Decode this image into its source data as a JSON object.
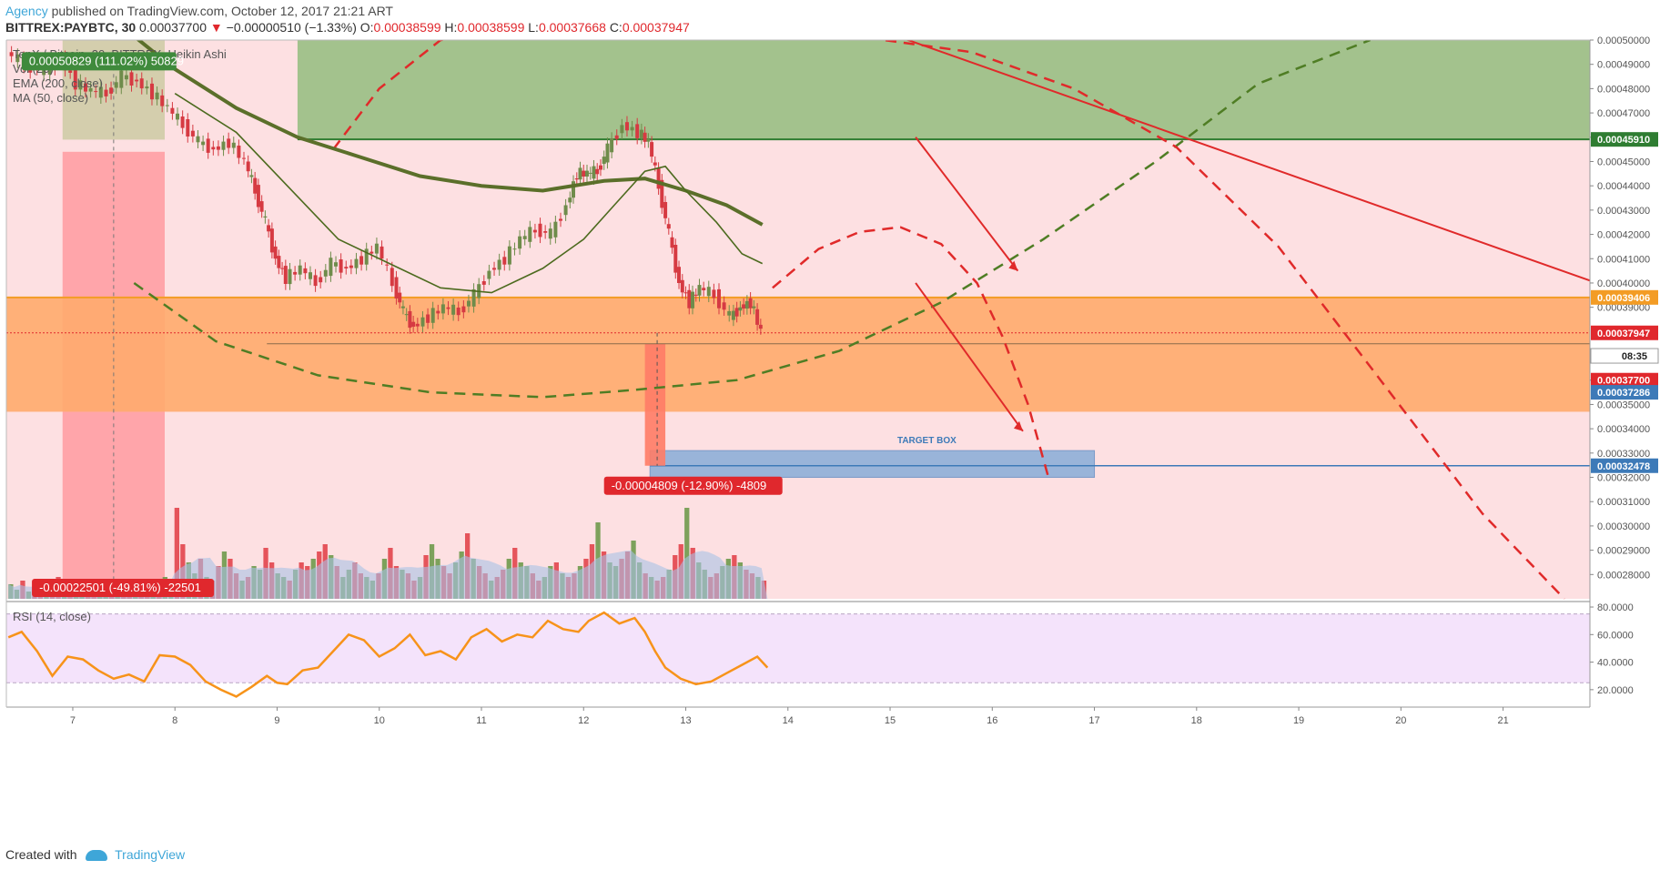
{
  "header": {
    "author": "Agency",
    "published": " published on TradingView.com, October 12, 2017 21:21 ART"
  },
  "symbol_bar": {
    "symbol": "BITTREX:PAYBTC, 30",
    "last": "0.00037700",
    "change": "−0.00000510 (−1.33%)",
    "o_label": "O:",
    "o": "0.00038599",
    "h_label": "H:",
    "h": "0.00038599",
    "l_label": "L:",
    "l": "0.00037668",
    "c_label": "C:",
    "c": "0.00037947"
  },
  "legend": {
    "title": "TenX / Bitcoin, 30, BITTREX, Heikin Ashi",
    "volume": "Vol (20)",
    "ema": "EMA (200, close)",
    "ma": "MA (50, close)"
  },
  "annotations": {
    "measure_top": "0.00050829 (111.02%) 50829",
    "measure_bottom": "-0.00022501 (-49.81%) -22501",
    "measure_mid": "-0.00004809 (-12.90%) -4809",
    "target_box": "TARGET BOX"
  },
  "rsi": {
    "label": "RSI (14, close)"
  },
  "footer": {
    "created_with": "Created with",
    "brand": "TradingView"
  },
  "colors": {
    "background_pink": "#fde0e2",
    "green_zone": "#a3c28d",
    "orange_zone": "#ffab6d",
    "target_blue": "#8fb0d9",
    "bull": "#6f8c4b",
    "bear": "#d63a42",
    "ema": "#5b6f2a",
    "rsi": "#f7931a"
  },
  "chart_data": {
    "type": "candlestick",
    "price_axis": {
      "min": 0.00027,
      "max": 0.0005,
      "ticks": [
        "0.00050000",
        "0.00049000",
        "0.00048000",
        "0.00047000",
        "0.00046000",
        "0.00045000",
        "0.00044000",
        "0.00043000",
        "0.00042000",
        "0.00041000",
        "0.00040000",
        "0.00039000",
        "0.00036000",
        "0.00035000",
        "0.00034000",
        "0.00033000",
        "0.00032000",
        "0.00031000",
        "0.00030000",
        "0.00029000",
        "0.00028000"
      ],
      "tick_values": [
        0.0005,
        0.00049,
        0.00048,
        0.00047,
        0.00046,
        0.00045,
        0.00044,
        0.00043,
        0.00042,
        0.00041,
        0.0004,
        0.00039,
        0.00036,
        0.00035,
        0.00034,
        0.00033,
        0.00032,
        0.00031,
        0.0003,
        0.00029,
        0.00028
      ],
      "badges": [
        {
          "label": "0.00045910",
          "value": 0.0004591,
          "color": "#2f7d32"
        },
        {
          "label": "0.00039406",
          "value": 0.00039406,
          "color": "#f39c25"
        },
        {
          "label": "0.00037947",
          "value": 0.00037947,
          "color": "#e0282d"
        },
        {
          "label": "08:35",
          "value": 0.00037,
          "color": "#ffffff"
        },
        {
          "label": "0.00037700",
          "value": 0.00036,
          "color": "#e0282d"
        },
        {
          "label": "0.00037286",
          "value": 0.000355,
          "color": "#3d7ab8"
        },
        {
          "label": "0.00032478",
          "value": 0.00032478,
          "color": "#3d7ab8"
        }
      ]
    },
    "time_axis": {
      "labels": [
        "7",
        "8",
        "9",
        "10",
        "11",
        "12",
        "13",
        "14",
        "15",
        "16",
        "17",
        "18",
        "19",
        "20",
        "21"
      ],
      "day_index": [
        1,
        2,
        3,
        4,
        5,
        6,
        7,
        8,
        9,
        10,
        11,
        12,
        13,
        14,
        15
      ],
      "day_min": 0.35,
      "day_max": 15.85
    },
    "zones": {
      "green": {
        "from": 0.0004591,
        "to": 0.0005,
        "day_start": 3.2,
        "day_end": 15.85
      },
      "green_left": {
        "from": 0.000459,
        "to": 0.0005,
        "day_start": 0.9,
        "day_end": 1.9
      },
      "orange": {
        "from": 0.000347,
        "to": 0.00039406
      },
      "target": {
        "from": 0.00032,
        "to": 0.000331,
        "day_start": 6.65,
        "day_end": 11.0
      }
    },
    "rsi_axis": {
      "ticks": [
        "80.0000",
        "60.0000",
        "40.0000",
        "20.0000"
      ],
      "tick_values": [
        80,
        60,
        40,
        20
      ],
      "min": 10,
      "max": 82,
      "band": [
        25,
        75
      ]
    },
    "price_series": [
      [
        0.37,
        0.000495
      ],
      [
        0.55,
        0.00049
      ],
      [
        0.75,
        0.000487
      ],
      [
        0.9,
        0.000492
      ],
      [
        1.05,
        0.000482
      ],
      [
        1.2,
        0.000479
      ],
      [
        1.35,
        0.000478
      ],
      [
        1.5,
        0.000485
      ],
      [
        1.65,
        0.000483
      ],
      [
        1.8,
        0.000478
      ],
      [
        1.95,
        0.000472
      ],
      [
        2.1,
        0.000465
      ],
      [
        2.25,
        0.000458
      ],
      [
        2.4,
        0.000455
      ],
      [
        2.55,
        0.000458
      ],
      [
        2.7,
        0.00045
      ],
      [
        2.8,
        0.000438
      ],
      [
        2.9,
        0.000425
      ],
      [
        3.0,
        0.00041
      ],
      [
        3.1,
        0.000402
      ],
      [
        3.25,
        0.000406
      ],
      [
        3.4,
        0.0004
      ],
      [
        3.55,
        0.000408
      ],
      [
        3.7,
        0.000406
      ],
      [
        3.85,
        0.00041
      ],
      [
        4.0,
        0.000415
      ],
      [
        4.15,
        0.0004
      ],
      [
        4.25,
        0.000388
      ],
      [
        4.35,
        0.000382
      ],
      [
        4.5,
        0.000386
      ],
      [
        4.65,
        0.00039
      ],
      [
        4.8,
        0.000388
      ],
      [
        4.95,
        0.000395
      ],
      [
        5.1,
        0.000405
      ],
      [
        5.25,
        0.00041
      ],
      [
        5.4,
        0.000418
      ],
      [
        5.55,
        0.000422
      ],
      [
        5.7,
        0.00042
      ],
      [
        5.85,
        0.000432
      ],
      [
        5.95,
        0.000445
      ],
      [
        6.05,
        0.000445
      ],
      [
        6.15,
        0.000446
      ],
      [
        6.25,
        0.000455
      ],
      [
        6.4,
        0.000465
      ],
      [
        6.55,
        0.000462
      ],
      [
        6.65,
        0.000458
      ],
      [
        6.75,
        0.00044
      ],
      [
        6.85,
        0.00042
      ],
      [
        6.95,
        0.0004
      ],
      [
        7.05,
        0.000392
      ],
      [
        7.15,
        0.000398
      ],
      [
        7.3,
        0.000395
      ],
      [
        7.45,
        0.000386
      ],
      [
        7.55,
        0.00039
      ],
      [
        7.65,
        0.000392
      ],
      [
        7.75,
        0.00038
      ]
    ],
    "ema_series": [
      [
        1.5,
        0.000505
      ],
      [
        2.0,
        0.000488
      ],
      [
        2.6,
        0.000472
      ],
      [
        3.2,
        0.00046
      ],
      [
        3.8,
        0.000452
      ],
      [
        4.4,
        0.000444
      ],
      [
        5.0,
        0.00044
      ],
      [
        5.6,
        0.000438
      ],
      [
        6.2,
        0.000442
      ],
      [
        6.6,
        0.000443
      ],
      [
        7.0,
        0.000438
      ],
      [
        7.4,
        0.000432
      ],
      [
        7.75,
        0.000424
      ]
    ],
    "ma_series": [
      [
        2.0,
        0.000478
      ],
      [
        2.6,
        0.000462
      ],
      [
        3.1,
        0.00044
      ],
      [
        3.6,
        0.000418
      ],
      [
        4.1,
        0.000408
      ],
      [
        4.6,
        0.000398
      ],
      [
        5.1,
        0.000396
      ],
      [
        5.6,
        0.000406
      ],
      [
        6.0,
        0.000418
      ],
      [
        6.3,
        0.000432
      ],
      [
        6.6,
        0.000446
      ],
      [
        6.8,
        0.000448
      ],
      [
        7.0,
        0.000438
      ],
      [
        7.3,
        0.000425
      ],
      [
        7.55,
        0.000412
      ],
      [
        7.75,
        0.000408
      ]
    ],
    "rsi_series": [
      [
        0.37,
        58
      ],
      [
        0.5,
        62
      ],
      [
        0.65,
        48
      ],
      [
        0.8,
        30
      ],
      [
        0.95,
        44
      ],
      [
        1.1,
        42
      ],
      [
        1.25,
        34
      ],
      [
        1.4,
        28
      ],
      [
        1.55,
        31
      ],
      [
        1.7,
        26
      ],
      [
        1.85,
        45
      ],
      [
        2.0,
        44
      ],
      [
        2.15,
        38
      ],
      [
        2.3,
        26
      ],
      [
        2.45,
        20
      ],
      [
        2.6,
        15
      ],
      [
        2.75,
        22
      ],
      [
        2.9,
        30
      ],
      [
        3.0,
        25
      ],
      [
        3.1,
        24
      ],
      [
        3.25,
        34
      ],
      [
        3.4,
        36
      ],
      [
        3.55,
        48
      ],
      [
        3.7,
        60
      ],
      [
        3.85,
        56
      ],
      [
        4.0,
        44
      ],
      [
        4.15,
        50
      ],
      [
        4.3,
        60
      ],
      [
        4.45,
        45
      ],
      [
        4.6,
        48
      ],
      [
        4.75,
        42
      ],
      [
        4.9,
        58
      ],
      [
        5.05,
        64
      ],
      [
        5.2,
        55
      ],
      [
        5.35,
        60
      ],
      [
        5.5,
        58
      ],
      [
        5.65,
        70
      ],
      [
        5.8,
        64
      ],
      [
        5.95,
        62
      ],
      [
        6.05,
        70
      ],
      [
        6.2,
        76
      ],
      [
        6.35,
        68
      ],
      [
        6.5,
        72
      ],
      [
        6.6,
        62
      ],
      [
        6.7,
        48
      ],
      [
        6.8,
        36
      ],
      [
        6.95,
        28
      ],
      [
        7.1,
        24
      ],
      [
        7.25,
        26
      ],
      [
        7.4,
        32
      ],
      [
        7.55,
        38
      ],
      [
        7.7,
        44
      ],
      [
        7.8,
        36
      ]
    ],
    "volume": {
      "bars": [
        0.08,
        0.05,
        0.1,
        0.04,
        0.06,
        0.03,
        0.09,
        0.05,
        0.12,
        0.04,
        0.08,
        0.06,
        0.05,
        0.1,
        0.05,
        0.07,
        0.04,
        0.06,
        0.05,
        0.08,
        0.05,
        0.04,
        0.09,
        0.06,
        0.07,
        0.05,
        0.12,
        0.08,
        0.5,
        0.3,
        0.2,
        0.14,
        0.22,
        0.12,
        0.1,
        0.18,
        0.26,
        0.22,
        0.14,
        0.1,
        0.12,
        0.18,
        0.16,
        0.28,
        0.2,
        0.14,
        0.12,
        0.1,
        0.16,
        0.2,
        0.18,
        0.22,
        0.26,
        0.3,
        0.24,
        0.18,
        0.12,
        0.16,
        0.2,
        0.14,
        0.12,
        0.1,
        0.14,
        0.22,
        0.28,
        0.18,
        0.16,
        0.14,
        0.1,
        0.12,
        0.24,
        0.3,
        0.22,
        0.18,
        0.14,
        0.2,
        0.26,
        0.36,
        0.22,
        0.18,
        0.14,
        0.1,
        0.12,
        0.16,
        0.22,
        0.28,
        0.2,
        0.18,
        0.14,
        0.1,
        0.12,
        0.18,
        0.2,
        0.14,
        0.12,
        0.14,
        0.18,
        0.22,
        0.3,
        0.42,
        0.26,
        0.2,
        0.18,
        0.22,
        0.26,
        0.32,
        0.2,
        0.14,
        0.12,
        0.1,
        0.12,
        0.16,
        0.24,
        0.3,
        0.5,
        0.28,
        0.2,
        0.16,
        0.12,
        0.14,
        0.18,
        0.22,
        0.24,
        0.2,
        0.16,
        0.14,
        0.12,
        0.1
      ],
      "day_start": 0.37,
      "day_end": 7.8
    }
  }
}
